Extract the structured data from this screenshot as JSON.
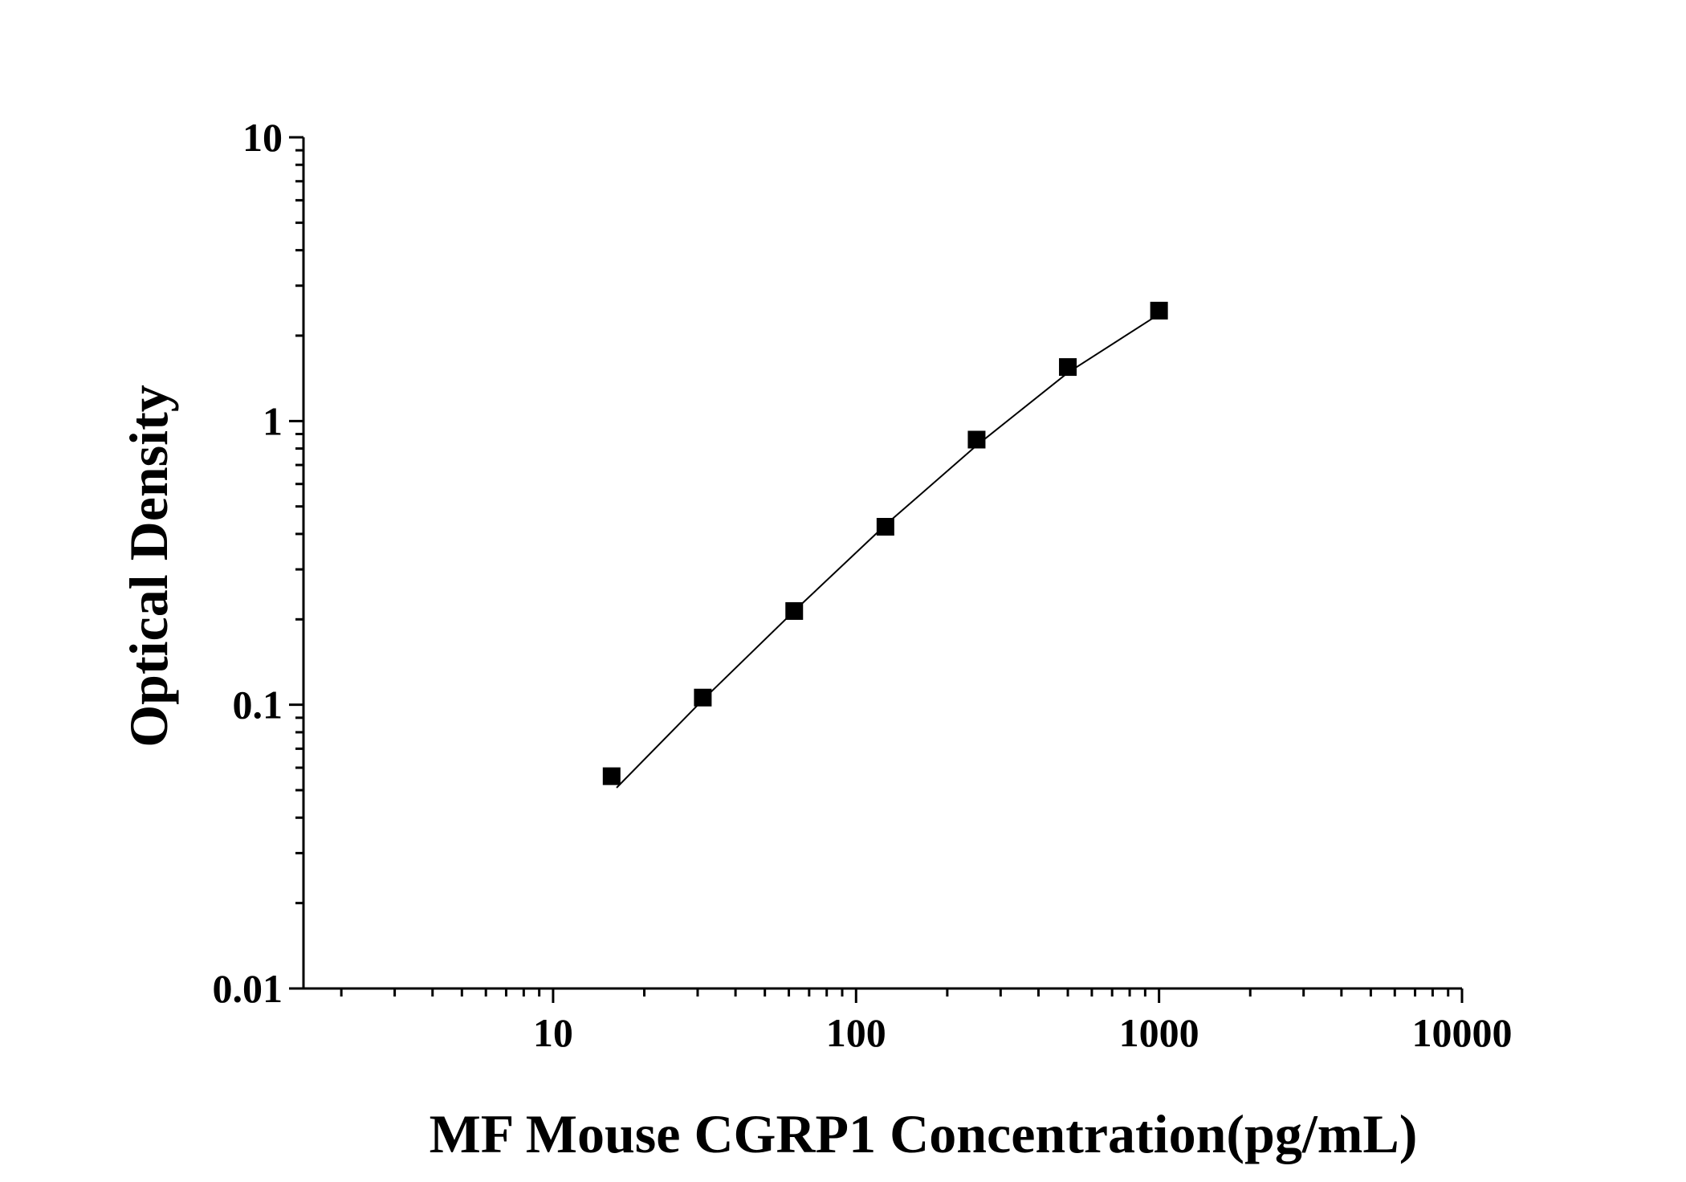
{
  "chart_data": {
    "type": "scatter",
    "title": "",
    "xlabel": "MF Mouse CGRP1 Concentration(pg/mL)",
    "ylabel": "Optical Density",
    "x_scale": "log",
    "y_scale": "log",
    "xlim": [
      1.5,
      10000
    ],
    "ylim": [
      0.01,
      10
    ],
    "x_ticks": [
      {
        "value": 10,
        "label": "10"
      },
      {
        "value": 100,
        "label": "100"
      },
      {
        "value": 1000,
        "label": "1000"
      },
      {
        "value": 10000,
        "label": "10000"
      }
    ],
    "y_ticks": [
      {
        "value": 0.01,
        "label": "0.01"
      },
      {
        "value": 0.1,
        "label": "0.1"
      },
      {
        "value": 1,
        "label": "1"
      },
      {
        "value": 10,
        "label": "10"
      }
    ],
    "grid": false,
    "legend": "none",
    "series": [
      {
        "marker": "square",
        "color": "#000000",
        "x": [
          15.6,
          31.2,
          62.5,
          125,
          250,
          500,
          1000
        ],
        "y": [
          0.056,
          0.106,
          0.214,
          0.424,
          0.86,
          1.55,
          2.45
        ]
      }
    ],
    "fit_curve": {
      "color": "#000000",
      "x": [
        16.2,
        31.2,
        62.5,
        125,
        250,
        500,
        1000
      ],
      "y": [
        0.051,
        0.104,
        0.214,
        0.43,
        0.82,
        1.48,
        2.38
      ]
    }
  }
}
